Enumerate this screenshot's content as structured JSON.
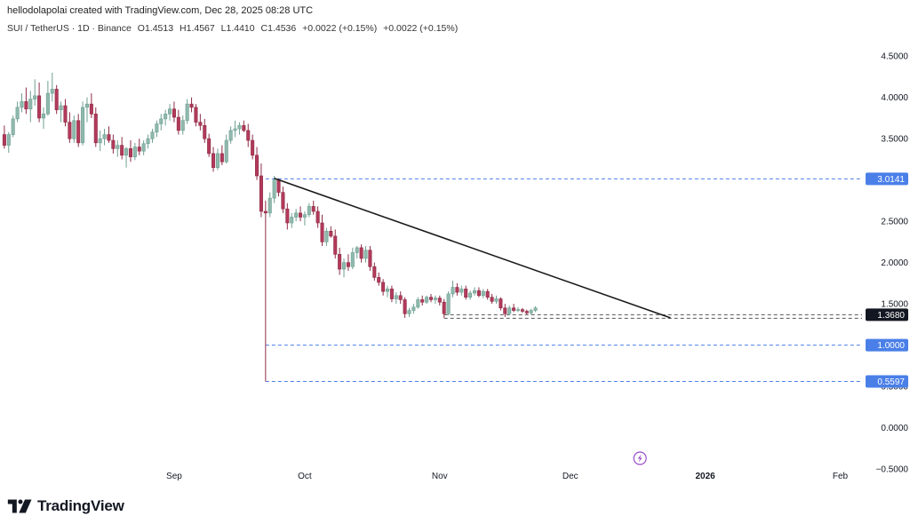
{
  "header": {
    "credit": "hellodolapolai created with TradingView.com, Dec 28, 2025 08:28 UTC",
    "symbol": "SUI / TetherUS · 1D · Binance",
    "open": "O1.4513",
    "high": "H1.4567",
    "low": "L1.4410",
    "close": "C1.4536",
    "change": "+0.0022 (+0.15%)",
    "change2": "+0.0022 (+0.15%)"
  },
  "footer": {
    "brand": "TradingView",
    "logo": "tradingview-logo-icon"
  },
  "colors": {
    "up": "#8fb9ad",
    "down": "#b23a5a",
    "level_line": "#4a7fe8",
    "trendline": "#1a1a1a",
    "grid_text": "#131722"
  },
  "chart_data": {
    "type": "candlestick",
    "symbol": "SUI / TetherUS",
    "interval": "1D",
    "exchange": "Binance",
    "y_range": [
      -0.5,
      4.75
    ],
    "y_ticks": [
      "4.5000",
      "4.0000",
      "3.5000",
      "3.0000",
      "2.5000",
      "2.0000",
      "1.5000",
      "1.0000",
      "0.5000",
      "0.0000",
      "−0.5000"
    ],
    "x_labels": [
      "Sep",
      "Oct",
      "Nov",
      "Dec",
      "2026",
      "Feb"
    ],
    "x_label_dates": [
      "2025-09-01",
      "2025-10-01",
      "2025-11-01",
      "2025-12-01",
      "2026-01-01",
      "2026-02-01"
    ],
    "x_range": [
      "2025-07-23",
      "2026-02-06"
    ],
    "candles": [
      {
        "d": "2025-07-24",
        "o": 3.55,
        "h": 3.66,
        "l": 3.38,
        "c": 3.42
      },
      {
        "d": "2025-07-25",
        "o": 3.42,
        "h": 3.58,
        "l": 3.33,
        "c": 3.55
      },
      {
        "d": "2025-07-26",
        "o": 3.55,
        "h": 3.78,
        "l": 3.52,
        "c": 3.74
      },
      {
        "d": "2025-07-27",
        "o": 3.74,
        "h": 3.95,
        "l": 3.7,
        "c": 3.88
      },
      {
        "d": "2025-07-28",
        "o": 3.88,
        "h": 4.05,
        "l": 3.82,
        "c": 3.95
      },
      {
        "d": "2025-07-29",
        "o": 3.95,
        "h": 4.12,
        "l": 3.8,
        "c": 3.86
      },
      {
        "d": "2025-07-30",
        "o": 3.86,
        "h": 4.08,
        "l": 3.7,
        "c": 3.98
      },
      {
        "d": "2025-07-31",
        "o": 3.98,
        "h": 4.22,
        "l": 3.9,
        "c": 4.02
      },
      {
        "d": "2025-08-01",
        "o": 4.02,
        "h": 4.18,
        "l": 3.7,
        "c": 3.75
      },
      {
        "d": "2025-08-02",
        "o": 3.75,
        "h": 3.88,
        "l": 3.62,
        "c": 3.8
      },
      {
        "d": "2025-08-03",
        "o": 3.8,
        "h": 4.2,
        "l": 3.78,
        "c": 4.05
      },
      {
        "d": "2025-08-04",
        "o": 4.05,
        "h": 4.3,
        "l": 3.95,
        "c": 4.1
      },
      {
        "d": "2025-08-05",
        "o": 4.1,
        "h": 4.15,
        "l": 3.8,
        "c": 3.85
      },
      {
        "d": "2025-08-06",
        "o": 3.85,
        "h": 3.95,
        "l": 3.7,
        "c": 3.9
      },
      {
        "d": "2025-08-07",
        "o": 3.9,
        "h": 3.98,
        "l": 3.65,
        "c": 3.7
      },
      {
        "d": "2025-08-08",
        "o": 3.7,
        "h": 3.82,
        "l": 3.45,
        "c": 3.5
      },
      {
        "d": "2025-08-09",
        "o": 3.5,
        "h": 3.78,
        "l": 3.45,
        "c": 3.72
      },
      {
        "d": "2025-08-10",
        "o": 3.72,
        "h": 3.8,
        "l": 3.4,
        "c": 3.45
      },
      {
        "d": "2025-08-11",
        "o": 3.45,
        "h": 3.95,
        "l": 3.42,
        "c": 3.88
      },
      {
        "d": "2025-08-12",
        "o": 3.88,
        "h": 4.0,
        "l": 3.7,
        "c": 3.92
      },
      {
        "d": "2025-08-13",
        "o": 3.92,
        "h": 4.05,
        "l": 3.75,
        "c": 3.8
      },
      {
        "d": "2025-08-14",
        "o": 3.8,
        "h": 3.88,
        "l": 3.4,
        "c": 3.45
      },
      {
        "d": "2025-08-15",
        "o": 3.45,
        "h": 3.6,
        "l": 3.35,
        "c": 3.5
      },
      {
        "d": "2025-08-16",
        "o": 3.5,
        "h": 3.62,
        "l": 3.42,
        "c": 3.55
      },
      {
        "d": "2025-08-17",
        "o": 3.55,
        "h": 3.65,
        "l": 3.45,
        "c": 3.48
      },
      {
        "d": "2025-08-18",
        "o": 3.48,
        "h": 3.55,
        "l": 3.32,
        "c": 3.38
      },
      {
        "d": "2025-08-19",
        "o": 3.38,
        "h": 3.48,
        "l": 3.28,
        "c": 3.42
      },
      {
        "d": "2025-08-20",
        "o": 3.42,
        "h": 3.52,
        "l": 3.25,
        "c": 3.3
      },
      {
        "d": "2025-08-21",
        "o": 3.3,
        "h": 3.4,
        "l": 3.15,
        "c": 3.38
      },
      {
        "d": "2025-08-22",
        "o": 3.38,
        "h": 3.48,
        "l": 3.22,
        "c": 3.28
      },
      {
        "d": "2025-08-23",
        "o": 3.28,
        "h": 3.45,
        "l": 3.24,
        "c": 3.4
      },
      {
        "d": "2025-08-24",
        "o": 3.4,
        "h": 3.5,
        "l": 3.3,
        "c": 3.35
      },
      {
        "d": "2025-08-25",
        "o": 3.35,
        "h": 3.48,
        "l": 3.3,
        "c": 3.44
      },
      {
        "d": "2025-08-26",
        "o": 3.44,
        "h": 3.55,
        "l": 3.38,
        "c": 3.5
      },
      {
        "d": "2025-08-27",
        "o": 3.5,
        "h": 3.62,
        "l": 3.45,
        "c": 3.58
      },
      {
        "d": "2025-08-28",
        "o": 3.58,
        "h": 3.72,
        "l": 3.52,
        "c": 3.68
      },
      {
        "d": "2025-08-29",
        "o": 3.68,
        "h": 3.8,
        "l": 3.6,
        "c": 3.74
      },
      {
        "d": "2025-08-30",
        "o": 3.74,
        "h": 3.85,
        "l": 3.66,
        "c": 3.8
      },
      {
        "d": "2025-08-31",
        "o": 3.8,
        "h": 3.92,
        "l": 3.72,
        "c": 3.86
      },
      {
        "d": "2025-09-01",
        "o": 3.86,
        "h": 3.95,
        "l": 3.7,
        "c": 3.76
      },
      {
        "d": "2025-09-02",
        "o": 3.76,
        "h": 3.85,
        "l": 3.55,
        "c": 3.6
      },
      {
        "d": "2025-09-03",
        "o": 3.6,
        "h": 3.78,
        "l": 3.55,
        "c": 3.72
      },
      {
        "d": "2025-09-04",
        "o": 3.72,
        "h": 3.98,
        "l": 3.68,
        "c": 3.92
      },
      {
        "d": "2025-09-05",
        "o": 3.92,
        "h": 4.0,
        "l": 3.82,
        "c": 3.88
      },
      {
        "d": "2025-09-06",
        "o": 3.88,
        "h": 3.92,
        "l": 3.65,
        "c": 3.7
      },
      {
        "d": "2025-09-07",
        "o": 3.7,
        "h": 3.8,
        "l": 3.6,
        "c": 3.66
      },
      {
        "d": "2025-09-08",
        "o": 3.66,
        "h": 3.74,
        "l": 3.45,
        "c": 3.5
      },
      {
        "d": "2025-09-09",
        "o": 3.5,
        "h": 3.56,
        "l": 3.28,
        "c": 3.32
      },
      {
        "d": "2025-09-10",
        "o": 3.32,
        "h": 3.4,
        "l": 3.1,
        "c": 3.15
      },
      {
        "d": "2025-09-11",
        "o": 3.15,
        "h": 3.38,
        "l": 3.12,
        "c": 3.32
      },
      {
        "d": "2025-09-12",
        "o": 3.32,
        "h": 3.42,
        "l": 3.18,
        "c": 3.22
      },
      {
        "d": "2025-09-13",
        "o": 3.22,
        "h": 3.55,
        "l": 3.2,
        "c": 3.48
      },
      {
        "d": "2025-09-14",
        "o": 3.48,
        "h": 3.65,
        "l": 3.44,
        "c": 3.6
      },
      {
        "d": "2025-09-15",
        "o": 3.6,
        "h": 3.72,
        "l": 3.52,
        "c": 3.62
      },
      {
        "d": "2025-09-16",
        "o": 3.62,
        "h": 3.7,
        "l": 3.55,
        "c": 3.66
      },
      {
        "d": "2025-09-17",
        "o": 3.66,
        "h": 3.72,
        "l": 3.58,
        "c": 3.6
      },
      {
        "d": "2025-09-18",
        "o": 3.6,
        "h": 3.68,
        "l": 3.4,
        "c": 3.48
      },
      {
        "d": "2025-09-19",
        "o": 3.48,
        "h": 3.55,
        "l": 3.25,
        "c": 3.3
      },
      {
        "d": "2025-09-20",
        "o": 3.3,
        "h": 3.4,
        "l": 3.0,
        "c": 3.05
      },
      {
        "d": "2025-09-21",
        "o": 3.05,
        "h": 3.2,
        "l": 2.55,
        "c": 2.62
      },
      {
        "d": "2025-09-22",
        "o": 2.62,
        "h": 2.75,
        "l": 0.5597,
        "c": 2.6
      },
      {
        "d": "2025-09-23",
        "o": 2.6,
        "h": 2.85,
        "l": 2.55,
        "c": 2.78
      },
      {
        "d": "2025-09-24",
        "o": 2.78,
        "h": 3.05,
        "l": 2.72,
        "c": 3.0
      },
      {
        "d": "2025-09-25",
        "o": 3.0,
        "h": 3.02,
        "l": 2.8,
        "c": 2.85
      },
      {
        "d": "2025-09-26",
        "o": 2.85,
        "h": 2.92,
        "l": 2.6,
        "c": 2.65
      },
      {
        "d": "2025-09-27",
        "o": 2.65,
        "h": 2.72,
        "l": 2.4,
        "c": 2.48
      },
      {
        "d": "2025-09-28",
        "o": 2.48,
        "h": 2.6,
        "l": 2.42,
        "c": 2.55
      },
      {
        "d": "2025-09-29",
        "o": 2.55,
        "h": 2.65,
        "l": 2.5,
        "c": 2.6
      },
      {
        "d": "2025-09-30",
        "o": 2.6,
        "h": 2.68,
        "l": 2.5,
        "c": 2.55
      },
      {
        "d": "2025-10-01",
        "o": 2.55,
        "h": 2.62,
        "l": 2.45,
        "c": 2.58
      },
      {
        "d": "2025-10-02",
        "o": 2.58,
        "h": 2.72,
        "l": 2.55,
        "c": 2.68
      },
      {
        "d": "2025-10-03",
        "o": 2.68,
        "h": 2.75,
        "l": 2.58,
        "c": 2.62
      },
      {
        "d": "2025-10-04",
        "o": 2.62,
        "h": 2.68,
        "l": 2.42,
        "c": 2.48
      },
      {
        "d": "2025-10-05",
        "o": 2.48,
        "h": 2.58,
        "l": 2.2,
        "c": 2.25
      },
      {
        "d": "2025-10-06",
        "o": 2.25,
        "h": 2.42,
        "l": 2.2,
        "c": 2.38
      },
      {
        "d": "2025-10-07",
        "o": 2.38,
        "h": 2.44,
        "l": 2.3,
        "c": 2.32
      },
      {
        "d": "2025-10-08",
        "o": 2.32,
        "h": 2.4,
        "l": 2.05,
        "c": 2.1
      },
      {
        "d": "2025-10-09",
        "o": 2.1,
        "h": 2.18,
        "l": 1.85,
        "c": 1.92
      },
      {
        "d": "2025-10-10",
        "o": 1.92,
        "h": 2.05,
        "l": 1.82,
        "c": 2.0
      },
      {
        "d": "2025-10-11",
        "o": 2.0,
        "h": 2.1,
        "l": 1.9,
        "c": 1.95
      },
      {
        "d": "2025-10-12",
        "o": 1.95,
        "h": 2.18,
        "l": 1.92,
        "c": 2.12
      },
      {
        "d": "2025-10-13",
        "o": 2.12,
        "h": 2.2,
        "l": 2.05,
        "c": 2.18
      },
      {
        "d": "2025-10-14",
        "o": 2.18,
        "h": 2.22,
        "l": 2.0,
        "c": 2.05
      },
      {
        "d": "2025-10-15",
        "o": 2.05,
        "h": 2.2,
        "l": 2.0,
        "c": 2.15
      },
      {
        "d": "2025-10-16",
        "o": 2.15,
        "h": 2.2,
        "l": 1.9,
        "c": 1.95
      },
      {
        "d": "2025-10-17",
        "o": 1.95,
        "h": 2.0,
        "l": 1.78,
        "c": 1.82
      },
      {
        "d": "2025-10-18",
        "o": 1.82,
        "h": 1.88,
        "l": 1.72,
        "c": 1.76
      },
      {
        "d": "2025-10-19",
        "o": 1.76,
        "h": 1.8,
        "l": 1.6,
        "c": 1.65
      },
      {
        "d": "2025-10-20",
        "o": 1.65,
        "h": 1.72,
        "l": 1.58,
        "c": 1.68
      },
      {
        "d": "2025-10-21",
        "o": 1.68,
        "h": 1.72,
        "l": 1.52,
        "c": 1.56
      },
      {
        "d": "2025-10-22",
        "o": 1.56,
        "h": 1.64,
        "l": 1.5,
        "c": 1.6
      },
      {
        "d": "2025-10-23",
        "o": 1.6,
        "h": 1.65,
        "l": 1.5,
        "c": 1.55
      },
      {
        "d": "2025-10-24",
        "o": 1.55,
        "h": 1.58,
        "l": 1.33,
        "c": 1.38
      },
      {
        "d": "2025-10-25",
        "o": 1.38,
        "h": 1.45,
        "l": 1.34,
        "c": 1.42
      },
      {
        "d": "2025-10-26",
        "o": 1.42,
        "h": 1.5,
        "l": 1.38,
        "c": 1.46
      },
      {
        "d": "2025-10-27",
        "o": 1.46,
        "h": 1.58,
        "l": 1.44,
        "c": 1.55
      },
      {
        "d": "2025-10-28",
        "o": 1.55,
        "h": 1.6,
        "l": 1.48,
        "c": 1.52
      },
      {
        "d": "2025-10-29",
        "o": 1.52,
        "h": 1.6,
        "l": 1.5,
        "c": 1.58
      },
      {
        "d": "2025-10-30",
        "o": 1.58,
        "h": 1.62,
        "l": 1.52,
        "c": 1.55
      },
      {
        "d": "2025-10-31",
        "o": 1.55,
        "h": 1.6,
        "l": 1.5,
        "c": 1.57
      },
      {
        "d": "2025-11-01",
        "o": 1.57,
        "h": 1.6,
        "l": 1.48,
        "c": 1.52
      },
      {
        "d": "2025-11-02",
        "o": 1.52,
        "h": 1.56,
        "l": 1.33,
        "c": 1.38
      },
      {
        "d": "2025-11-03",
        "o": 1.38,
        "h": 1.65,
        "l": 1.36,
        "c": 1.62
      },
      {
        "d": "2025-11-04",
        "o": 1.62,
        "h": 1.78,
        "l": 1.58,
        "c": 1.7
      },
      {
        "d": "2025-11-05",
        "o": 1.7,
        "h": 1.75,
        "l": 1.6,
        "c": 1.64
      },
      {
        "d": "2025-11-06",
        "o": 1.64,
        "h": 1.72,
        "l": 1.6,
        "c": 1.68
      },
      {
        "d": "2025-11-07",
        "o": 1.68,
        "h": 1.72,
        "l": 1.55,
        "c": 1.58
      },
      {
        "d": "2025-11-08",
        "o": 1.58,
        "h": 1.66,
        "l": 1.55,
        "c": 1.63
      },
      {
        "d": "2025-11-09",
        "o": 1.63,
        "h": 1.7,
        "l": 1.6,
        "c": 1.66
      },
      {
        "d": "2025-11-10",
        "o": 1.66,
        "h": 1.7,
        "l": 1.58,
        "c": 1.6
      },
      {
        "d": "2025-11-11",
        "o": 1.6,
        "h": 1.68,
        "l": 1.57,
        "c": 1.65
      },
      {
        "d": "2025-11-12",
        "o": 1.65,
        "h": 1.68,
        "l": 1.55,
        "c": 1.58
      },
      {
        "d": "2025-11-13",
        "o": 1.58,
        "h": 1.62,
        "l": 1.5,
        "c": 1.53
      },
      {
        "d": "2025-11-14",
        "o": 1.53,
        "h": 1.6,
        "l": 1.5,
        "c": 1.56
      },
      {
        "d": "2025-11-15",
        "o": 1.56,
        "h": 1.58,
        "l": 1.42,
        "c": 1.45
      },
      {
        "d": "2025-11-16",
        "o": 1.45,
        "h": 1.5,
        "l": 1.34,
        "c": 1.38
      },
      {
        "d": "2025-11-17",
        "o": 1.38,
        "h": 1.48,
        "l": 1.36,
        "c": 1.45
      },
      {
        "d": "2025-11-18",
        "o": 1.45,
        "h": 1.5,
        "l": 1.4,
        "c": 1.42
      },
      {
        "d": "2025-11-19",
        "o": 1.42,
        "h": 1.46,
        "l": 1.4,
        "c": 1.43
      },
      {
        "d": "2025-11-20",
        "o": 1.43,
        "h": 1.45,
        "l": 1.39,
        "c": 1.41
      },
      {
        "d": "2025-11-21",
        "o": 1.41,
        "h": 1.43,
        "l": 1.37,
        "c": 1.39
      },
      {
        "d": "2025-11-22",
        "o": 1.39,
        "h": 1.44,
        "l": 1.37,
        "c": 1.42
      },
      {
        "d": "2025-11-23",
        "o": 1.42,
        "h": 1.47,
        "l": 1.4,
        "c": 1.45
      }
    ],
    "horizontal_levels": [
      {
        "value": 3.0141,
        "label": "3.0141",
        "style": "dashed-blue"
      },
      {
        "value": 1.0,
        "label": "1.0000",
        "style": "dashed-blue"
      },
      {
        "value": 0.5597,
        "label": "0.5597",
        "style": "dashed-blue"
      },
      {
        "value": 1.368,
        "label": "1.3680",
        "style": "dashed-gray"
      },
      {
        "value": 1.325,
        "label": "",
        "style": "dashed-gray"
      }
    ],
    "trendline": {
      "from": {
        "d": "2025-09-24",
        "v": 3.02
      },
      "to": {
        "d": "2025-12-24",
        "v": 1.33
      }
    },
    "current_price_label": "1.3680"
  }
}
